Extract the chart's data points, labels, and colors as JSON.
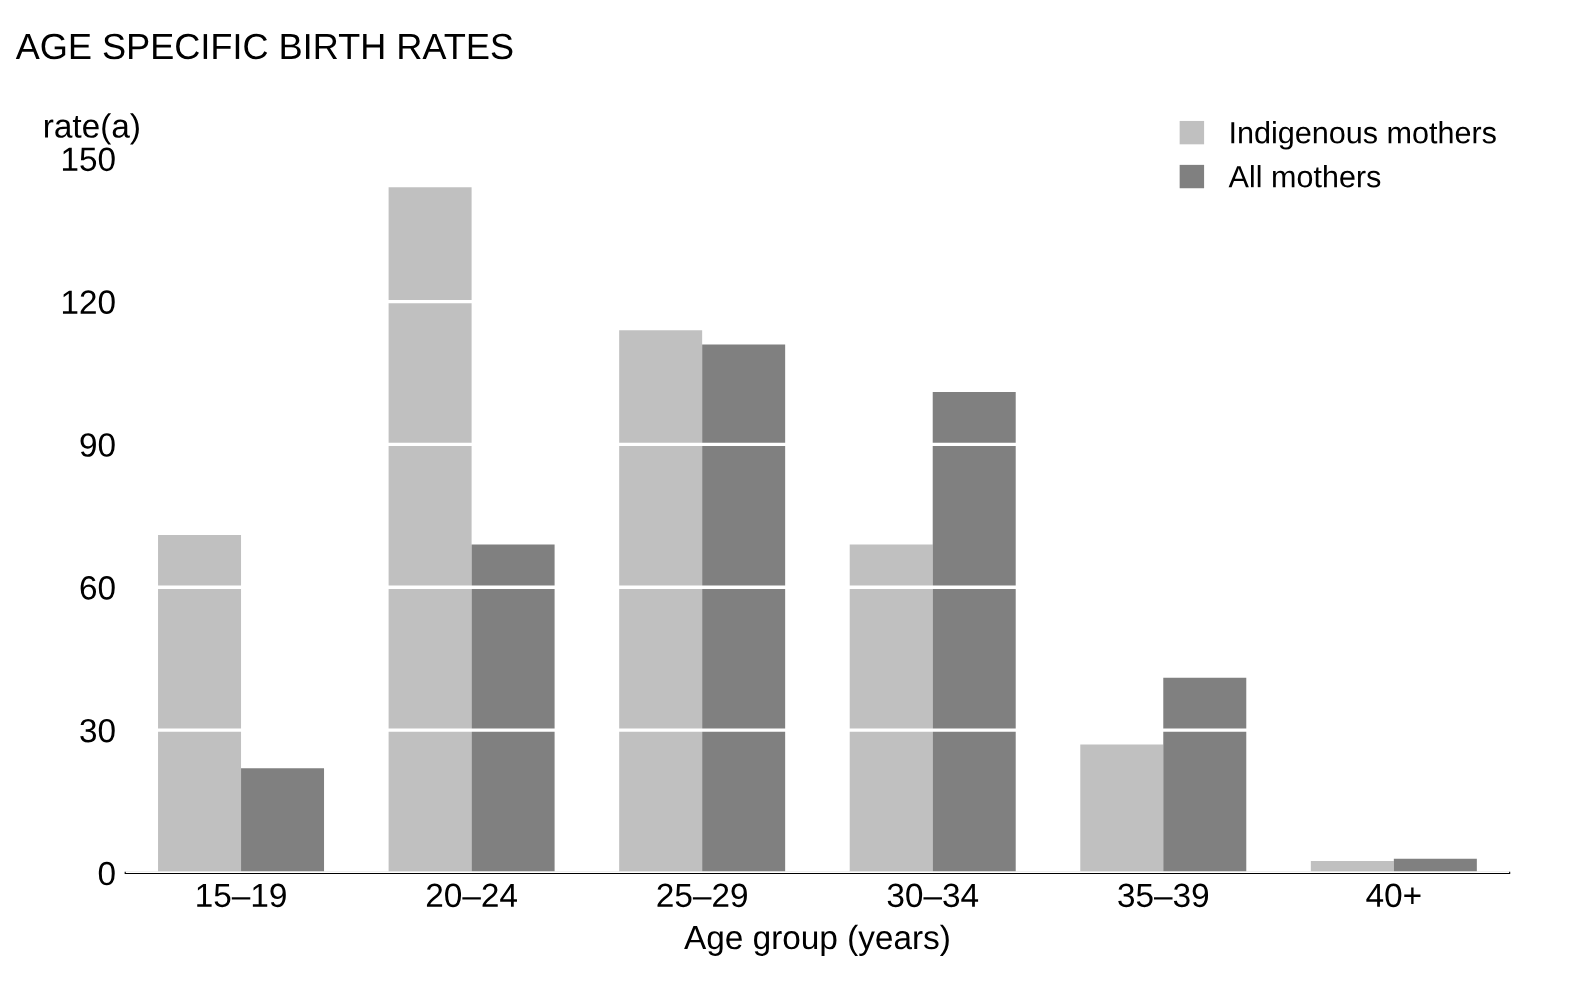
{
  "chart_data": {
    "type": "bar",
    "title": "AGE SPECIFIC BIRTH RATES",
    "ylabel": "rate(a)",
    "xlabel": "Age group (years)",
    "categories": [
      "15–19",
      "20–24",
      "25–29",
      "30–34",
      "35–39",
      "40+"
    ],
    "series": [
      {
        "name": "Indigenous mothers",
        "color": "#c0c0c0",
        "values": [
          71,
          144,
          114,
          69,
          27,
          2.5
        ]
      },
      {
        "name": "All mothers",
        "color": "#808080",
        "values": [
          22,
          69,
          111,
          101,
          41,
          3
        ]
      }
    ],
    "ylim": [
      0,
      150
    ],
    "yticks": [
      0,
      30,
      60,
      90,
      120,
      150
    ],
    "grid": "y",
    "legend": "top right"
  }
}
